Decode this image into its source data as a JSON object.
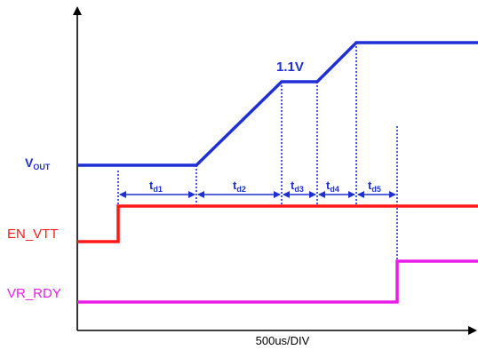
{
  "signals": {
    "vout": {
      "label": "V",
      "subscript": "OUT",
      "color": "#1f2fd6"
    },
    "en_vtt": {
      "label": "EN_VTT",
      "color": "#ff1a1a"
    },
    "vr_rdy": {
      "label": "VR_RDY",
      "color": "#e81ee8"
    }
  },
  "annotations": {
    "plateau_voltage": "1.1V"
  },
  "delays": [
    {
      "main": "t",
      "sub": "d1"
    },
    {
      "main": "t",
      "sub": "d2"
    },
    {
      "main": "t",
      "sub": "d3"
    },
    {
      "main": "t",
      "sub": "d4"
    },
    {
      "main": "t",
      "sub": "d5"
    }
  ],
  "axis": {
    "time_scale": "500us/DIV",
    "axis_color": "#000000",
    "marker_color": "#1f2fd6"
  }
}
